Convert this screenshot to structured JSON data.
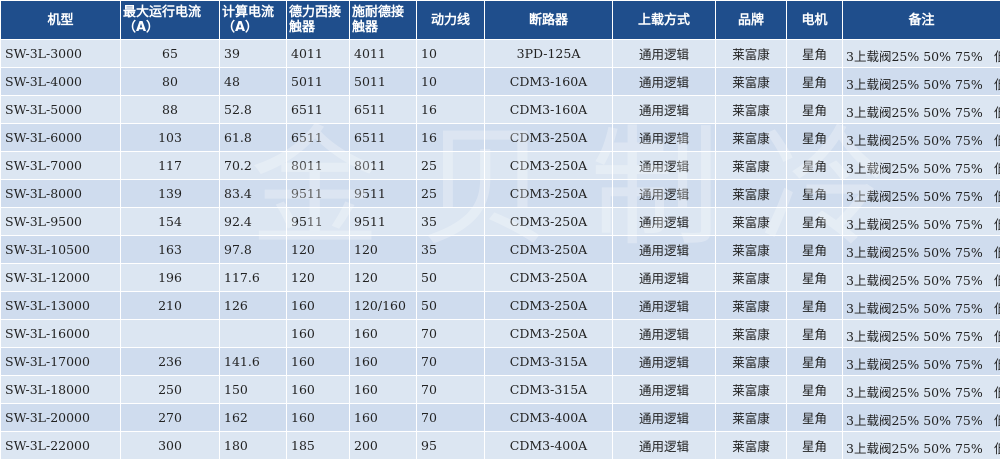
{
  "headers": {
    "model": "机型",
    "max_current": "最大运行电流（A）",
    "calc_current": "计算电流（A）",
    "delixi": "德力西接触器",
    "schneider": "施耐德接触器",
    "power_line": "动力线",
    "breaker": "断路器",
    "load_mode": "上载方式",
    "brand": "品牌",
    "motor": "电机",
    "remark": "备注"
  },
  "rows": [
    {
      "model": "SW-3L-3000",
      "max_current": "65",
      "calc_current": "39",
      "delixi": "4011",
      "schneider": "4011",
      "power_line": "10",
      "breaker": "3PD-125A",
      "load_mode": "通用逻辑",
      "brand": "莱富康",
      "motor": "星角",
      "remark": "3上载阀25% 50% 75%",
      "remark_tail": "低温"
    },
    {
      "model": "SW-3L-4000",
      "max_current": "80",
      "calc_current": "48",
      "delixi": "5011",
      "schneider": "5011",
      "power_line": "10",
      "breaker": "CDM3-160A",
      "load_mode": "通用逻辑",
      "brand": "莱富康",
      "motor": "星角",
      "remark": "3上载阀25% 50% 75%",
      "remark_tail": "低温"
    },
    {
      "model": "SW-3L-5000",
      "max_current": "88",
      "calc_current": "52.8",
      "delixi": "6511",
      "schneider": "6511",
      "power_line": "16",
      "breaker": "CDM3-160A",
      "load_mode": "通用逻辑",
      "brand": "莱富康",
      "motor": "星角",
      "remark": "3上载阀25% 50% 75%",
      "remark_tail": "低温"
    },
    {
      "model": "SW-3L-6000",
      "max_current": "103",
      "calc_current": "61.8",
      "delixi": "6511",
      "schneider": "6511",
      "power_line": "16",
      "breaker": "CDM3-250A",
      "load_mode": "通用逻辑",
      "brand": "莱富康",
      "motor": "星角",
      "remark": "3上载阀25% 50% 75%",
      "remark_tail": "低温"
    },
    {
      "model": "SW-3L-7000",
      "max_current": "117",
      "calc_current": "70.2",
      "delixi": "8011",
      "schneider": "8011",
      "power_line": "25",
      "breaker": "CDM3-250A",
      "load_mode": "通用逻辑",
      "brand": "莱富康",
      "motor": "星角",
      "remark": "3上载阀25% 50% 75%",
      "remark_tail": "低温"
    },
    {
      "model": "SW-3L-8000",
      "max_current": "139",
      "calc_current": "83.4",
      "delixi": "9511",
      "schneider": "9511",
      "power_line": "25",
      "breaker": "CDM3-250A",
      "load_mode": "通用逻辑",
      "brand": "莱富康",
      "motor": "星角",
      "remark": "3上载阀25% 50% 75%",
      "remark_tail": "低温"
    },
    {
      "model": "SW-3L-9500",
      "max_current": "154",
      "calc_current": "92.4",
      "delixi": "9511",
      "schneider": "9511",
      "power_line": "35",
      "breaker": "CDM3-250A",
      "load_mode": "通用逻辑",
      "brand": "莱富康",
      "motor": "星角",
      "remark": "3上载阀25% 50% 75%",
      "remark_tail": "低温"
    },
    {
      "model": "SW-3L-10500",
      "max_current": "163",
      "calc_current": "97.8",
      "delixi": "120",
      "schneider": "120",
      "power_line": "35",
      "breaker": "CDM3-250A",
      "load_mode": "通用逻辑",
      "brand": "莱富康",
      "motor": "星角",
      "remark": "3上载阀25% 50% 75%",
      "remark_tail": "低温"
    },
    {
      "model": "SW-3L-12000",
      "max_current": "196",
      "calc_current": "117.6",
      "delixi": "120",
      "schneider": "120",
      "power_line": "50",
      "breaker": "CDM3-250A",
      "load_mode": "通用逻辑",
      "brand": "莱富康",
      "motor": "星角",
      "remark": "3上载阀25% 50% 75%",
      "remark_tail": "低温"
    },
    {
      "model": "SW-3L-13000",
      "max_current": "210",
      "calc_current": "126",
      "delixi": "160",
      "schneider": "120/160",
      "power_line": "50",
      "breaker": "CDM3-250A",
      "load_mode": "通用逻辑",
      "brand": "莱富康",
      "motor": "星角",
      "remark": "3上载阀25% 50% 75%",
      "remark_tail": "低温"
    },
    {
      "model": "SW-3L-16000",
      "max_current": "",
      "calc_current": "",
      "delixi": "160",
      "schneider": "160",
      "power_line": "70",
      "breaker": "CDM3-250A",
      "load_mode": "通用逻辑",
      "brand": "莱富康",
      "motor": "星角",
      "remark": "3上载阀25% 50% 75%",
      "remark_tail": "低温"
    },
    {
      "model": "SW-3L-17000",
      "max_current": "236",
      "calc_current": "141.6",
      "delixi": "160",
      "schneider": "160",
      "power_line": "70",
      "breaker": "CDM3-315A",
      "load_mode": "通用逻辑",
      "brand": "莱富康",
      "motor": "星角",
      "remark": "3上载阀25% 50% 75%",
      "remark_tail": "低温"
    },
    {
      "model": "SW-3L-18000",
      "max_current": "250",
      "calc_current": "150",
      "delixi": "160",
      "schneider": "160",
      "power_line": "70",
      "breaker": "CDM3-315A",
      "load_mode": "通用逻辑",
      "brand": "莱富康",
      "motor": "星角",
      "remark": "3上载阀25% 50% 75%",
      "remark_tail": "低温"
    },
    {
      "model": "SW-3L-20000",
      "max_current": "270",
      "calc_current": "162",
      "delixi": "160",
      "schneider": "160",
      "power_line": "70",
      "breaker": "CDM3-400A",
      "load_mode": "通用逻辑",
      "brand": "莱富康",
      "motor": "星角",
      "remark": "3上载阀25% 50% 75%",
      "remark_tail": "低温"
    },
    {
      "model": "SW-3L-22000",
      "max_current": "300",
      "calc_current": "180",
      "delixi": "185",
      "schneider": "200",
      "power_line": "95",
      "breaker": "CDM3-400A",
      "load_mode": "通用逻辑",
      "brand": "莱富康",
      "motor": "星角",
      "remark": "3上载阀25% 50% 75%",
      "remark_tail": "低温"
    }
  ],
  "watermark": "金贝制冷",
  "colors": {
    "header_bg": "#1f4e8c",
    "row_bg": "#dce6f2"
  }
}
